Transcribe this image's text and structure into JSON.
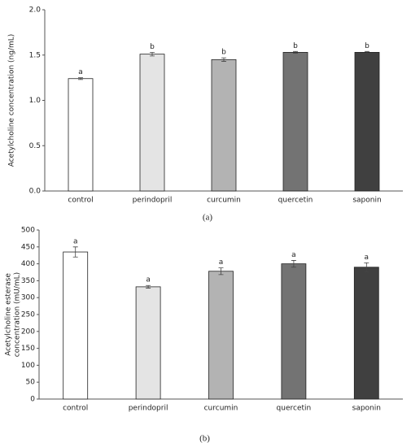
{
  "chart_data": [
    {
      "type": "bar",
      "y_label": [
        "Acetylcholine concentration (ng/mL)"
      ],
      "caption": "(a)",
      "categories": [
        "control",
        "perindopril",
        "curcumin",
        "quercetin",
        "saponin"
      ],
      "values": [
        1.24,
        1.51,
        1.45,
        1.53,
        1.53
      ],
      "errors": [
        0.01,
        0.02,
        0.02,
        0.01,
        0.01
      ],
      "labels": [
        "a",
        "b",
        "b",
        "b",
        "b"
      ],
      "colors": [
        "#ffffff",
        "#e4e4e4",
        "#b3b3b3",
        "#737373",
        "#404040"
      ],
      "ylim": [
        0,
        2
      ],
      "yticks": [
        {
          "value": 0,
          "label": "0.0"
        },
        0.5,
        {
          "value": 1,
          "label": "1.0"
        },
        1.5,
        {
          "value": 2,
          "label": "2.0"
        }
      ]
    },
    {
      "type": "bar",
      "y_label": [
        "Acetylcholine esterase",
        "concentration (mU/mL)"
      ],
      "caption": "(b)",
      "categories": [
        "control",
        "perindopril",
        "curcumin",
        "quercetin",
        "saponin"
      ],
      "values": [
        435,
        332,
        378,
        400,
        390
      ],
      "errors": [
        15,
        4,
        10,
        10,
        13
      ],
      "labels": [
        "a",
        "a",
        "a",
        "a",
        "a"
      ],
      "colors": [
        "#ffffff",
        "#e4e4e4",
        "#b3b3b3",
        "#737373",
        "#404040"
      ],
      "ylim": [
        0,
        500
      ],
      "yticks": [
        0,
        50,
        100,
        150,
        200,
        250,
        300,
        350,
        400,
        450,
        500
      ]
    }
  ]
}
